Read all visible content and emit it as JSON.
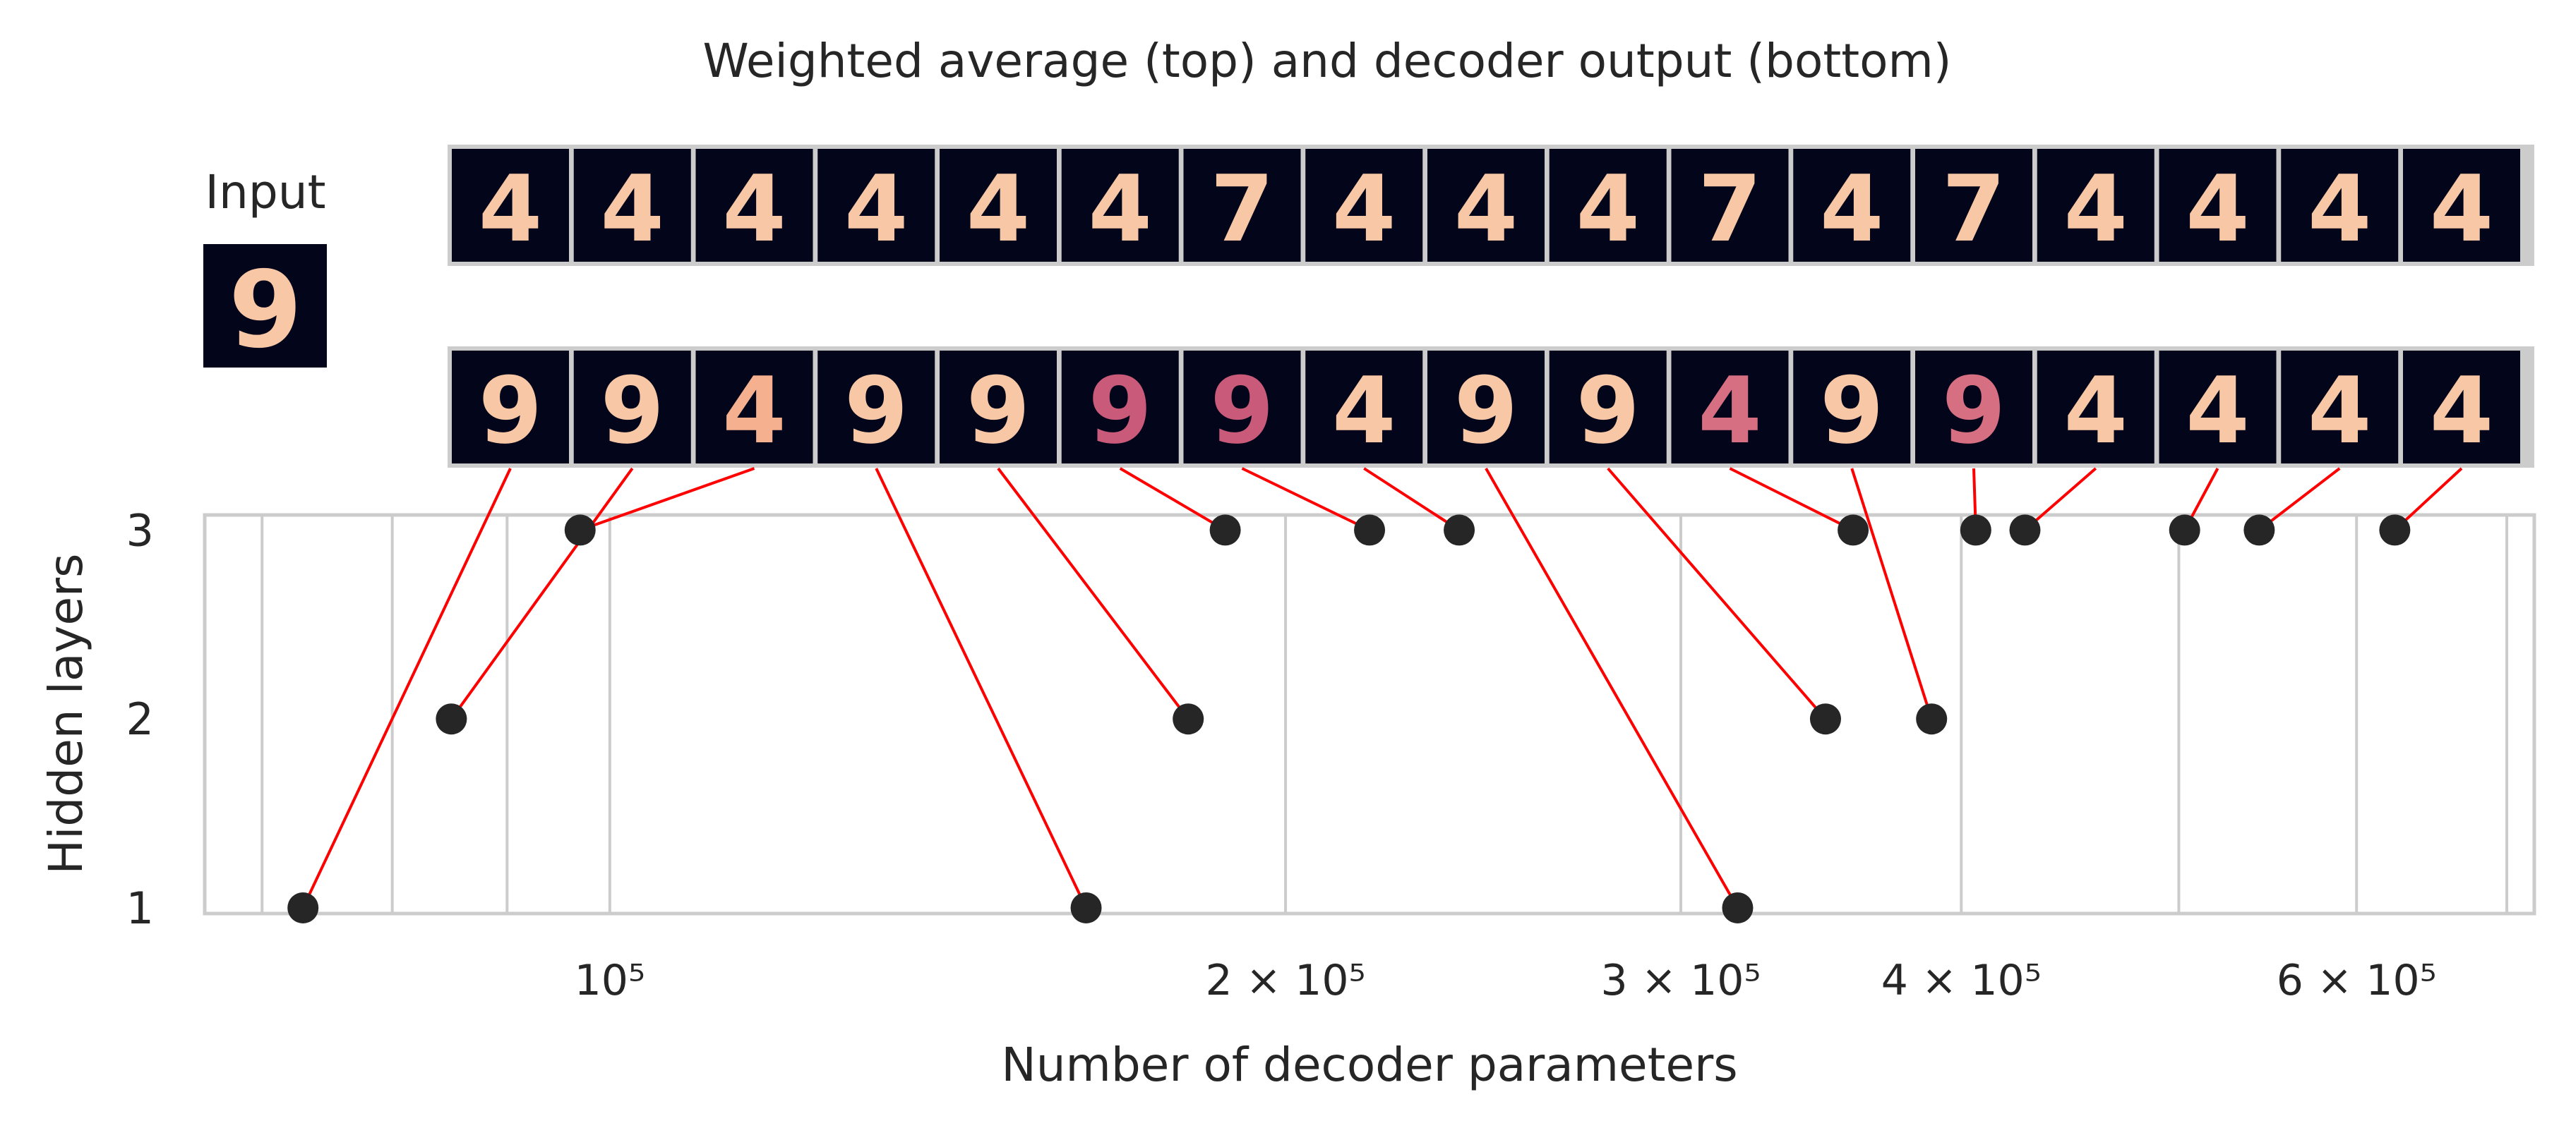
{
  "figure": {
    "title": "Weighted average (top) and decoder output (bottom)",
    "input_label": "Input",
    "input_digit": "9"
  },
  "strips": {
    "top_digits": [
      "4",
      "4",
      "4",
      "4",
      "4",
      "4",
      "7",
      "4",
      "4",
      "4",
      "7",
      "4",
      "7",
      "4",
      "4",
      "4",
      "4"
    ],
    "bottom_digits": [
      "9",
      "9",
      "4",
      "9",
      "9",
      "9",
      "9",
      "4",
      "9",
      "9",
      "4",
      "9",
      "9",
      "4",
      "4",
      "4",
      "4"
    ],
    "bottom_glyph_colors": [
      "#f8c7a6",
      "#f8c7a6",
      "#f4b08f",
      "#f8c7a6",
      "#f8c7a6",
      "#c95a7a",
      "#c95a7a",
      "#f8c7a6",
      "#f8c7a6",
      "#f8c7a6",
      "#d76f83",
      "#f8c7a6",
      "#d76f83",
      "#f8c7a6",
      "#f8c7a6",
      "#f8c7a6",
      "#f8c7a6"
    ]
  },
  "colors": {
    "image_bg": "#03051a",
    "glyph": "#f8c7a6",
    "frame": "#cccccc",
    "grid": "#cccccc",
    "point": "#262626",
    "connector": "#ff0000"
  },
  "chart_data": {
    "type": "scatter",
    "title": "",
    "xlabel": "Number of decoder parameters",
    "ylabel": "Hidden layers",
    "xscale": "log",
    "xlim": [
      66000,
      720000
    ],
    "ylim": [
      0.97,
      3.08
    ],
    "xticks": [
      {
        "value": 100000,
        "label": "10⁵"
      },
      {
        "value": 200000,
        "label": "2 × 10⁵"
      },
      {
        "value": 300000,
        "label": "3 × 10⁵"
      },
      {
        "value": 400000,
        "label": "4 × 10⁵"
      },
      {
        "value": 600000,
        "label": "6 × 10⁵"
      }
    ],
    "yticks": [
      {
        "value": 1,
        "label": "1"
      },
      {
        "value": 2,
        "label": "2"
      },
      {
        "value": 3,
        "label": "3"
      }
    ],
    "minor_gridlines_x": [
      70000,
      80000,
      90000,
      500000,
      700000
    ],
    "grid": true,
    "points": [
      {
        "x": 73000,
        "y": 1
      },
      {
        "x": 85000,
        "y": 2
      },
      {
        "x": 97000,
        "y": 3
      },
      {
        "x": 163000,
        "y": 1
      },
      {
        "x": 181000,
        "y": 2
      },
      {
        "x": 188000,
        "y": 3
      },
      {
        "x": 218000,
        "y": 3
      },
      {
        "x": 239000,
        "y": 3
      },
      {
        "x": 318000,
        "y": 1
      },
      {
        "x": 348000,
        "y": 2
      },
      {
        "x": 358000,
        "y": 3
      },
      {
        "x": 388000,
        "y": 2
      },
      {
        "x": 406000,
        "y": 3
      },
      {
        "x": 427000,
        "y": 3
      },
      {
        "x": 503000,
        "y": 3
      },
      {
        "x": 543000,
        "y": 3
      },
      {
        "x": 624000,
        "y": 3
      }
    ],
    "point_for_image": [
      0,
      1,
      2,
      3,
      4,
      5,
      6,
      7,
      8,
      9,
      10,
      11,
      12,
      13,
      14,
      15,
      16
    ],
    "image_for_point": [
      0,
      1,
      2,
      3,
      4,
      5,
      6,
      7,
      8,
      9,
      10,
      11,
      12,
      13,
      14,
      15,
      16
    ]
  }
}
